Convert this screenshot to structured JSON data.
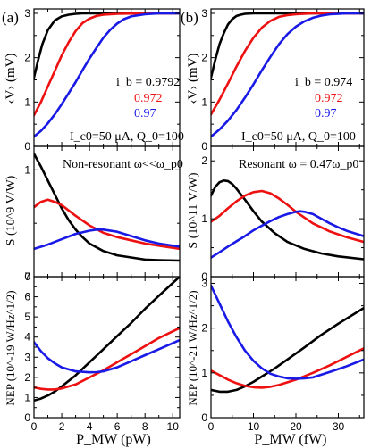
{
  "figure": {
    "panel_a_label": "(a)",
    "panel_b_label": "(b)"
  },
  "axes": {
    "a_x_label": "P_MW (pW)",
    "b_x_label": "P_MW (fW)",
    "a_x_ticks": [
      "0",
      "2",
      "4",
      "6",
      "8",
      "10"
    ],
    "b_x_ticks": [
      "0",
      "10",
      "20",
      "30"
    ],
    "v_ylabel": "‹V› (mV)",
    "s_a_ylabel": "S (10^9 V/W)",
    "s_b_ylabel": "S (10^11 V/W)",
    "nep_a_ylabel": "NEP (10^-19 W/Hz^1/2)",
    "nep_b_ylabel": "NEP (10^-21 W/Hz^1/2)",
    "v_yticks": [
      "0",
      "1",
      "2",
      "3"
    ],
    "s_a_yticks": [
      "0",
      "1"
    ],
    "s_b_yticks": [
      "0",
      "1",
      "2"
    ],
    "nep_a_yticks": [
      "0",
      "1",
      "2",
      "3",
      "4",
      "5",
      "6",
      "7"
    ],
    "nep_b_yticks": [
      "0",
      "1",
      "2",
      "3"
    ]
  },
  "annotations": {
    "a_ib": "i_b = 0.9792",
    "a_ib_red": "0.972",
    "a_ib_blue": "0.97",
    "a_params": "I_c0=50 μA, Q_0=100",
    "b_ib": "i_b = 0.974",
    "b_ib_red": "0.972",
    "b_ib_blue": "0.97",
    "b_params": "I_c0=50 μA, Q_0=100",
    "a_regime": "Non-resonant ω<<ω_p0",
    "b_regime": "Resonant ω = 0.47ω_p0"
  },
  "colors": {
    "black": "#000000",
    "red": "#ee1111",
    "blue": "#1a1ae6"
  },
  "chart_data": [
    {
      "panel": "a-top",
      "type": "line",
      "xlabel": "P_MW (pW)",
      "ylabel": "‹V› (mV)",
      "xlim": [
        0,
        10.5
      ],
      "ylim": [
        0,
        3.1
      ],
      "series": [
        {
          "name": "i_b = 0.9792",
          "color": "black",
          "x": [
            0,
            0.3,
            0.6,
            1,
            1.5,
            2,
            2.5,
            3,
            3.5,
            4,
            5,
            6,
            8,
            10.5
          ],
          "y": [
            1.55,
            1.95,
            2.3,
            2.62,
            2.84,
            2.93,
            2.97,
            2.99,
            3.0,
            3.0,
            3.0,
            3.0,
            3.0,
            3.0
          ]
        },
        {
          "name": "0.972",
          "color": "red",
          "x": [
            0,
            0.5,
            1,
            1.5,
            2,
            2.5,
            3,
            3.5,
            4,
            4.5,
            5,
            6,
            8,
            10.5
          ],
          "y": [
            0.7,
            1.0,
            1.35,
            1.7,
            2.05,
            2.35,
            2.6,
            2.78,
            2.88,
            2.94,
            2.97,
            2.99,
            3.0,
            3.0
          ]
        },
        {
          "name": "0.97",
          "color": "blue",
          "x": [
            0,
            0.5,
            1,
            1.5,
            2,
            2.5,
            3,
            3.5,
            4,
            4.5,
            5,
            5.5,
            6,
            6.5,
            7,
            8,
            9,
            10.5
          ],
          "y": [
            0.22,
            0.35,
            0.52,
            0.72,
            0.95,
            1.2,
            1.45,
            1.72,
            1.98,
            2.22,
            2.45,
            2.63,
            2.77,
            2.87,
            2.93,
            2.98,
            3.0,
            3.0
          ]
        }
      ]
    },
    {
      "panel": "b-top",
      "type": "line",
      "xlabel": "P_MW (fW)",
      "ylabel": "‹V› (mV)",
      "xlim": [
        0,
        36
      ],
      "ylim": [
        0,
        3.1
      ],
      "series": [
        {
          "name": "i_b = 0.974",
          "color": "black",
          "x": [
            0,
            1,
            2,
            3,
            4,
            5,
            6,
            7,
            8,
            10,
            12,
            15,
            20,
            36
          ],
          "y": [
            1.55,
            1.95,
            2.3,
            2.55,
            2.75,
            2.87,
            2.94,
            2.97,
            2.99,
            3.0,
            3.0,
            3.0,
            3.0,
            3.0
          ]
        },
        {
          "name": "0.972",
          "color": "red",
          "x": [
            0,
            2,
            4,
            6,
            8,
            10,
            12,
            14,
            16,
            18,
            20,
            24,
            30,
            36
          ],
          "y": [
            0.72,
            1.05,
            1.42,
            1.8,
            2.15,
            2.45,
            2.68,
            2.83,
            2.92,
            2.96,
            2.98,
            3.0,
            3.0,
            3.0
          ]
        },
        {
          "name": "0.97",
          "color": "blue",
          "x": [
            0,
            2,
            4,
            6,
            8,
            10,
            12,
            14,
            16,
            18,
            20,
            22,
            24,
            26,
            28,
            32,
            36
          ],
          "y": [
            0.22,
            0.38,
            0.58,
            0.82,
            1.1,
            1.4,
            1.72,
            2.02,
            2.3,
            2.53,
            2.7,
            2.82,
            2.9,
            2.95,
            2.98,
            3.0,
            3.0
          ]
        }
      ]
    },
    {
      "panel": "a-mid",
      "type": "line",
      "xlabel": "P_MW (pW)",
      "ylabel": "S (10^9 V/W)",
      "xlim": [
        0,
        10.5
      ],
      "ylim": [
        0,
        1.22
      ],
      "series": [
        {
          "name": "i_b = 0.9792",
          "color": "black",
          "x": [
            0,
            0.5,
            1,
            1.5,
            2,
            2.5,
            3,
            3.5,
            4,
            5,
            6,
            7,
            8,
            9,
            10.5
          ],
          "y": [
            1.15,
            1.03,
            0.9,
            0.77,
            0.64,
            0.53,
            0.44,
            0.37,
            0.31,
            0.24,
            0.2,
            0.18,
            0.16,
            0.155,
            0.15
          ]
        },
        {
          "name": "0.972",
          "color": "red",
          "x": [
            0,
            0.5,
            1,
            1.5,
            2,
            2.5,
            3,
            4,
            5,
            6,
            7,
            8,
            9,
            10.5
          ],
          "y": [
            0.65,
            0.7,
            0.72,
            0.7,
            0.67,
            0.62,
            0.57,
            0.48,
            0.41,
            0.37,
            0.34,
            0.31,
            0.29,
            0.26
          ]
        },
        {
          "name": "0.97",
          "color": "blue",
          "x": [
            0,
            1,
            2,
            3,
            4,
            4.5,
            5,
            6,
            7,
            8,
            9,
            10.5
          ],
          "y": [
            0.26,
            0.3,
            0.35,
            0.4,
            0.43,
            0.44,
            0.44,
            0.42,
            0.38,
            0.34,
            0.31,
            0.28
          ]
        }
      ]
    },
    {
      "panel": "b-mid",
      "type": "line",
      "xlabel": "P_MW (fW)",
      "ylabel": "S (10^11 V/W)",
      "xlim": [
        0,
        36
      ],
      "ylim": [
        0,
        2.25
      ],
      "series": [
        {
          "name": "i_b = 0.974",
          "color": "black",
          "x": [
            0,
            1,
            2,
            3,
            4,
            5,
            6,
            8,
            10,
            12,
            15,
            18,
            22,
            26,
            30,
            36
          ],
          "y": [
            1.4,
            1.55,
            1.63,
            1.66,
            1.65,
            1.6,
            1.52,
            1.33,
            1.13,
            0.95,
            0.75,
            0.6,
            0.48,
            0.4,
            0.35,
            0.3
          ]
        },
        {
          "name": "0.972",
          "color": "red",
          "x": [
            0,
            2,
            4,
            6,
            8,
            10,
            12,
            14,
            16,
            18,
            20,
            24,
            28,
            32,
            36
          ],
          "y": [
            0.95,
            1.05,
            1.18,
            1.3,
            1.4,
            1.46,
            1.48,
            1.44,
            1.35,
            1.24,
            1.12,
            0.92,
            0.78,
            0.68,
            0.6
          ]
        },
        {
          "name": "0.97",
          "color": "blue",
          "x": [
            0,
            2,
            4,
            6,
            8,
            10,
            12,
            14,
            16,
            18,
            20,
            21,
            22,
            24,
            26,
            28,
            30,
            32,
            36
          ],
          "y": [
            0.33,
            0.42,
            0.52,
            0.61,
            0.7,
            0.8,
            0.88,
            0.96,
            1.03,
            1.08,
            1.12,
            1.13,
            1.12,
            1.08,
            1.0,
            0.92,
            0.85,
            0.79,
            0.7
          ]
        }
      ]
    },
    {
      "panel": "a-bottom",
      "type": "line",
      "xlabel": "P_MW (pW)",
      "ylabel": "NEP (10^-19 W/Hz^1/2)",
      "xlim": [
        0,
        10.5
      ],
      "ylim": [
        0,
        7.0
      ],
      "series": [
        {
          "name": "i_b = 0.9792",
          "color": "black",
          "x": [
            0,
            0.5,
            1,
            1.5,
            2,
            3,
            4,
            5,
            6,
            7,
            8,
            9,
            10.5
          ],
          "y": [
            0.85,
            0.95,
            1.1,
            1.3,
            1.55,
            2.1,
            2.75,
            3.4,
            4.05,
            4.7,
            5.4,
            6.05,
            7.0
          ]
        },
        {
          "name": "0.972",
          "color": "red",
          "x": [
            0,
            0.5,
            1,
            1.5,
            2,
            3,
            4,
            5,
            6,
            7,
            8,
            9,
            10.5
          ],
          "y": [
            1.5,
            1.43,
            1.4,
            1.4,
            1.45,
            1.65,
            2.0,
            2.35,
            2.75,
            3.15,
            3.55,
            3.95,
            4.45
          ]
        },
        {
          "name": "0.97",
          "color": "blue",
          "x": [
            0,
            0.5,
            1,
            1.5,
            2,
            3,
            4,
            4.5,
            5,
            6,
            7,
            8,
            9,
            10.5
          ],
          "y": [
            3.75,
            3.3,
            2.95,
            2.7,
            2.5,
            2.3,
            2.25,
            2.26,
            2.3,
            2.5,
            2.8,
            3.1,
            3.4,
            3.85
          ]
        }
      ]
    },
    {
      "panel": "b-bottom",
      "type": "line",
      "xlabel": "P_MW (fW)",
      "ylabel": "NEP (10^-21 W/Hz^1/2)",
      "xlim": [
        0,
        36
      ],
      "ylim": [
        0,
        3.15
      ],
      "series": [
        {
          "name": "i_b = 0.974",
          "color": "black",
          "x": [
            0,
            2,
            4,
            6,
            8,
            10,
            12,
            15,
            18,
            22,
            26,
            30,
            36
          ],
          "y": [
            0.62,
            0.58,
            0.58,
            0.62,
            0.7,
            0.8,
            0.92,
            1.1,
            1.3,
            1.57,
            1.85,
            2.1,
            2.45
          ]
        },
        {
          "name": "0.972",
          "color": "red",
          "x": [
            0,
            2,
            4,
            6,
            8,
            10,
            12,
            14,
            16,
            20,
            24,
            28,
            32,
            36
          ],
          "y": [
            1.05,
            0.95,
            0.85,
            0.77,
            0.71,
            0.68,
            0.67,
            0.69,
            0.73,
            0.85,
            1.0,
            1.17,
            1.36,
            1.55
          ]
        },
        {
          "name": "0.97",
          "color": "blue",
          "x": [
            0,
            2,
            4,
            6,
            8,
            10,
            12,
            14,
            16,
            18,
            20,
            22,
            24,
            28,
            32,
            36
          ],
          "y": [
            2.95,
            2.55,
            2.15,
            1.8,
            1.5,
            1.27,
            1.1,
            0.98,
            0.92,
            0.88,
            0.87,
            0.88,
            0.9,
            1.02,
            1.15,
            1.3
          ]
        }
      ]
    }
  ]
}
